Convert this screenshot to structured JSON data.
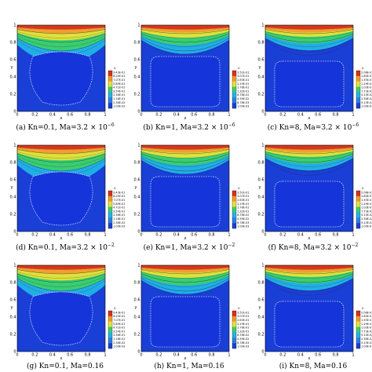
{
  "axes": {
    "xlabel": "x",
    "ylabel": "y"
  },
  "legend_title": "U",
  "colors": {
    "blue": "#1a3fd6",
    "band_cyan": "#22b4e8",
    "band_green": "#3ccf6a",
    "band_yellow": "#e6e23a",
    "band_orange": "#f29a2e",
    "band_red": "#d8301c",
    "core_blue": "#1534d9"
  },
  "panels": [
    {
      "id": "a",
      "caption": "(a) Kn=0.1, Ma=3.2 × 10",
      "exp": "−6",
      "cbar": [
        "9.43E-01",
        "8.25E-01",
        "7.07E-01",
        "5.89E-01",
        "4.71E-01",
        "3.54E-01",
        "2.36E-01",
        "1.18E-01",
        "2.36E-02",
        "1.00E-03"
      ]
    },
    {
      "id": "b",
      "caption": "(b) Kn=1, Ma=3.2 × 10",
      "exp": "−6",
      "cbar": [
        "3.51E-01",
        "3.07E-01",
        "2.63E-01",
        "2.19E-01",
        "1.76E-01",
        "1.32E-01",
        "8.78E-02",
        "4.39E-02",
        "8.78E-03",
        "1.00E-03"
      ]
    },
    {
      "id": "c",
      "caption": "(c) Kn=8, Ma=3.2 × 10",
      "exp": "−6",
      "cbar": [
        "2.06E-01",
        "1.80E-01",
        "1.55E-01",
        "1.29E-01",
        "1.03E-01",
        "7.73E-02",
        "5.15E-02",
        "2.58E-02",
        "5.15E-03",
        "1.00E-03"
      ]
    },
    {
      "id": "d",
      "caption": "(d) Kn=0.1, Ma=3.2 × 10",
      "exp": "−2",
      "cbar": [
        "9.43E-01",
        "8.25E-01",
        "7.07E-01",
        "5.89E-01",
        "4.71E-01",
        "3.54E-01",
        "2.36E-01",
        "1.18E-01",
        "2.36E-02",
        "1.00E-03"
      ]
    },
    {
      "id": "e",
      "caption": "(e) Kn=1, Ma=3.2 × 10",
      "exp": "−2",
      "cbar": [
        "3.51E-01",
        "3.07E-01",
        "2.63E-01",
        "2.19E-01",
        "1.76E-01",
        "1.32E-01",
        "8.78E-02",
        "4.39E-02",
        "8.78E-03",
        "1.00E-03"
      ]
    },
    {
      "id": "f",
      "caption": "(f) Kn=8, Ma=3.2 × 10",
      "exp": "−2",
      "cbar": [
        "2.06E-01",
        "1.80E-01",
        "1.55E-01",
        "1.29E-01",
        "1.03E-01",
        "7.73E-02",
        "5.15E-02",
        "2.58E-02",
        "5.15E-03",
        "1.00E-03"
      ]
    },
    {
      "id": "g",
      "caption": "(g) Kn=0.1, Ma=0.16",
      "exp": "",
      "cbar": [
        "9.43E-01",
        "8.25E-01",
        "7.07E-01",
        "5.89E-01",
        "4.71E-01",
        "3.54E-01",
        "2.36E-01",
        "1.18E-01",
        "2.36E-02",
        "1.00E-03"
      ]
    },
    {
      "id": "h",
      "caption": "(h) Kn=1, Ma=0.16",
      "exp": "",
      "cbar": [
        "3.51E-01",
        "3.07E-01",
        "2.63E-01",
        "2.19E-01",
        "1.76E-01",
        "1.32E-01",
        "8.78E-02",
        "4.39E-02",
        "8.78E-03",
        "1.00E-03"
      ]
    },
    {
      "id": "i",
      "caption": "(i) Kn=8, Ma=0.16",
      "exp": "",
      "cbar": [
        "2.06E-01",
        "1.80E-01",
        "1.55E-01",
        "1.29E-01",
        "1.03E-01",
        "7.73E-02",
        "5.15E-02",
        "2.58E-02",
        "5.15E-03",
        "1.00E-03"
      ]
    }
  ],
  "ticks": {
    "y": [
      "0",
      "0.2",
      "0.4",
      "0.6",
      "0.8",
      "1"
    ],
    "x": [
      "0",
      "0.2",
      "0.4",
      "0.6",
      "0.8",
      "1"
    ]
  }
}
